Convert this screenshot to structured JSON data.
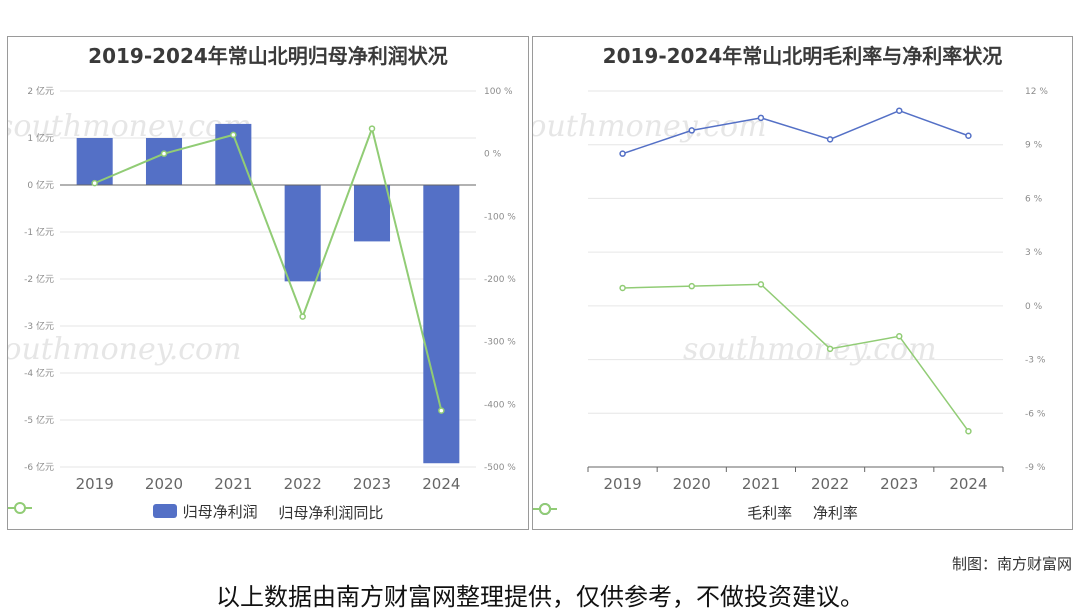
{
  "watermark": {
    "brand_cn": "南方财富网",
    "brand_en": "southmoney.com"
  },
  "charts": {
    "left": {
      "title": "2019-2024年常山北明归母净利润状况",
      "legend": {
        "bar": "归母净利润",
        "line": "归母净利润同比"
      }
    },
    "right": {
      "title": "2019-2024年常山北明毛利率与净利率状况",
      "legend": {
        "line1": "毛利率",
        "line2": "净利率"
      }
    }
  },
  "colors": {
    "bar": "#5470c6",
    "line_green": "#91cc75",
    "line_blue": "#5470c6",
    "grid": "#e6e6e6",
    "axis_text": "#8c8c8c"
  },
  "credit": "制图：南方财富网",
  "footnote": "以上数据由南方财富网整理提供，仅供参考，不做投资建议。",
  "chart_data": [
    {
      "type": "bar",
      "title": "2019-2024年常山北明归母净利润状况",
      "categories": [
        "2019",
        "2020",
        "2021",
        "2022",
        "2023",
        "2024"
      ],
      "series": [
        {
          "name": "归母净利润",
          "type": "bar",
          "axis": "left",
          "values": [
            1.0,
            1.0,
            1.3,
            -2.05,
            -1.2,
            -5.92
          ]
        },
        {
          "name": "归母净利润同比",
          "type": "line",
          "axis": "right",
          "values": [
            -47,
            0,
            30,
            -260,
            40,
            -410
          ]
        }
      ],
      "y_left": {
        "min": -6,
        "max": 2,
        "ticks": [
          2,
          1,
          0,
          -1,
          -2,
          -3,
          -4,
          -5,
          -6
        ],
        "tick_labels": [
          "2 亿元",
          "1 亿元",
          "0 亿元",
          "-1 亿元",
          "-2 亿元",
          "-3 亿元",
          "-4 亿元",
          "-5 亿元",
          "-6 亿元"
        ]
      },
      "y_right": {
        "min": -500,
        "max": 100,
        "ticks": [
          100,
          0,
          -100,
          -200,
          -300,
          -400,
          -500
        ],
        "tick_labels": [
          "100 %",
          "0 %",
          "-100 %",
          "-200 %",
          "-300 %",
          "-400 %",
          "-500 %"
        ]
      },
      "grid": true,
      "legend_position": "bottom"
    },
    {
      "type": "line",
      "title": "2019-2024年常山北明毛利率与净利率状况",
      "categories": [
        "2019",
        "2020",
        "2021",
        "2022",
        "2023",
        "2024"
      ],
      "series": [
        {
          "name": "毛利率",
          "values": [
            8.5,
            9.8,
            10.5,
            9.3,
            10.9,
            9.5
          ]
        },
        {
          "name": "净利率",
          "values": [
            1.0,
            1.1,
            1.2,
            -2.4,
            -1.7,
            -7.0
          ]
        }
      ],
      "y": {
        "min": -9,
        "max": 12,
        "ticks": [
          12,
          9,
          6,
          3,
          0,
          -3,
          -6,
          -9
        ],
        "tick_labels": [
          "12 %",
          "9 %",
          "6 %",
          "3 %",
          "0 %",
          "-3 %",
          "-6 %",
          "-9 %"
        ]
      },
      "grid": true,
      "legend_position": "bottom"
    }
  ]
}
